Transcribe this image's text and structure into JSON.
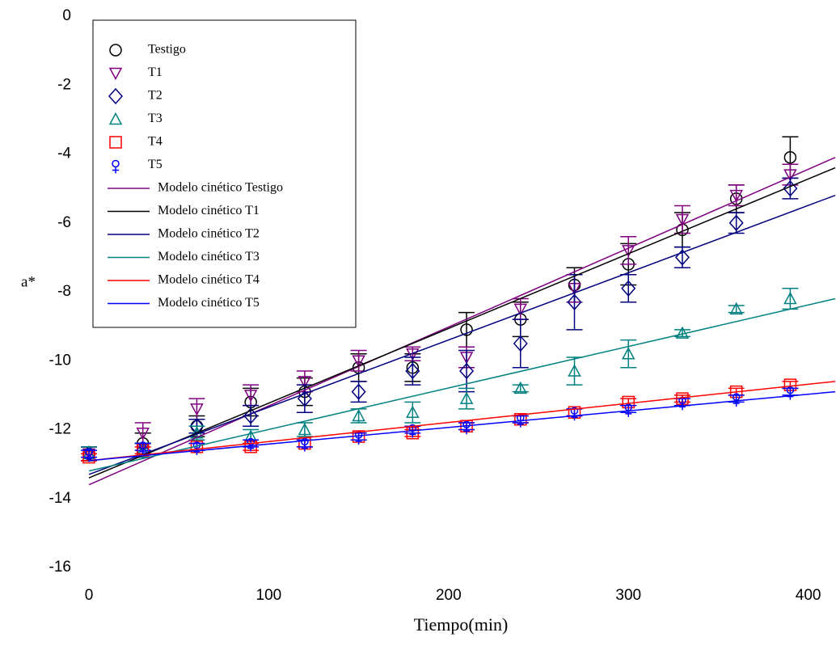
{
  "chart_data": {
    "type": "scatter",
    "x_label": "Tiempo(min)",
    "y_label": "a*",
    "xlim": [
      0,
      415
    ],
    "ylim": [
      -16,
      0
    ],
    "xticks": [
      0,
      100,
      200,
      300,
      400
    ],
    "yticks": [
      0,
      -2,
      -4,
      -6,
      -8,
      -10,
      -12,
      -14,
      -16
    ],
    "legend": "upper left",
    "x": [
      0,
      30,
      60,
      90,
      120,
      150,
      180,
      210,
      240,
      270,
      300,
      330,
      360,
      390
    ],
    "series": [
      {
        "name": "Testigo",
        "color": "#000000",
        "marker": "circle",
        "values": [
          -12.7,
          -12.4,
          -11.9,
          -11.2,
          -10.9,
          -10.2,
          -10.2,
          -9.1,
          -8.8,
          -7.8,
          -7.2,
          -6.2,
          -5.3,
          -4.1
        ],
        "errors": [
          0.2,
          0.3,
          0.3,
          0.4,
          0.4,
          0.4,
          0.4,
          0.5,
          0.5,
          0.5,
          0.6,
          0.5,
          0.4,
          0.6
        ]
      },
      {
        "name": "T1",
        "color": "#800080",
        "marker": "triangle-down",
        "values": [
          -12.7,
          -12.1,
          -11.4,
          -11.0,
          -10.6,
          -10.0,
          -9.8,
          -9.9,
          -8.5,
          -7.9,
          -6.8,
          -5.9,
          -5.2,
          -4.6
        ],
        "errors": [
          0.2,
          0.3,
          0.3,
          0.3,
          0.3,
          0.3,
          0.2,
          0.3,
          0.3,
          0.4,
          0.4,
          0.4,
          0.3,
          0.3
        ]
      },
      {
        "name": "T2",
        "color": "#000080",
        "marker": "diamond",
        "values": [
          -12.7,
          -12.6,
          -11.9,
          -11.6,
          -11.1,
          -10.9,
          -10.3,
          -10.3,
          -9.5,
          -8.3,
          -7.9,
          -7.0,
          -6.0,
          -5.0
        ],
        "errors": [
          0.2,
          0.2,
          0.2,
          0.3,
          0.4,
          0.3,
          0.4,
          0.6,
          0.7,
          0.8,
          0.4,
          0.3,
          0.3,
          0.3
        ]
      },
      {
        "name": "T3",
        "color": "#008080",
        "marker": "triangle-up",
        "values": [
          -12.7,
          -12.6,
          -12.1,
          -12.2,
          -12.0,
          -11.6,
          -11.5,
          -11.1,
          -10.8,
          -10.3,
          -9.8,
          -9.2,
          -8.5,
          -8.2
        ],
        "errors": [
          0.2,
          0.2,
          0.2,
          0.2,
          0.2,
          0.2,
          0.3,
          0.3,
          0.1,
          0.4,
          0.4,
          0.1,
          0.1,
          0.3
        ]
      },
      {
        "name": "T4",
        "color": "#ff0000",
        "marker": "square",
        "values": [
          -12.8,
          -12.6,
          -12.5,
          -12.5,
          -12.4,
          -12.2,
          -12.1,
          -11.9,
          -11.7,
          -11.5,
          -11.2,
          -11.1,
          -10.9,
          -10.7
        ],
        "errors": [
          0.1,
          0.1,
          0.1,
          0.1,
          0.1,
          0.1,
          0.1,
          0.1,
          0.1,
          0.1,
          0.1,
          0.1,
          0.1,
          0.1
        ]
      },
      {
        "name": "T5",
        "color": "#0000ff",
        "marker": "female",
        "values": [
          -12.7,
          -12.5,
          -12.5,
          -12.4,
          -12.4,
          -12.2,
          -12.0,
          -11.9,
          -11.7,
          -11.5,
          -11.4,
          -11.2,
          -11.1,
          -10.9
        ],
        "errors": [
          0.1,
          0.1,
          0.1,
          0.1,
          0.1,
          0.1,
          0.1,
          0.1,
          0.1,
          0.1,
          0.1,
          0.1,
          0.1,
          0.1
        ]
      }
    ],
    "models": [
      {
        "name": "Modelo cinético Testigo",
        "color": "#800080",
        "x": [
          0,
          415
        ],
        "values": [
          -13.6,
          -4.1
        ]
      },
      {
        "name": "Modelo cinético T1",
        "color": "#000000",
        "x": [
          0,
          415
        ],
        "values": [
          -13.4,
          -4.4
        ]
      },
      {
        "name": "Modelo cinético T2",
        "color": "#000080",
        "x": [
          0,
          415
        ],
        "values": [
          -13.3,
          -5.2
        ]
      },
      {
        "name": "Modelo cinético T3",
        "color": "#008080",
        "x": [
          0,
          415
        ],
        "values": [
          -13.2,
          -8.2
        ]
      },
      {
        "name": "Modelo cinético T4",
        "color": "#ff0000",
        "x": [
          0,
          415
        ],
        "values": [
          -12.9,
          -10.6
        ]
      },
      {
        "name": "Modelo cinético T5",
        "color": "#0000ff",
        "x": [
          0,
          415
        ],
        "values": [
          -12.9,
          -10.9
        ]
      }
    ]
  }
}
